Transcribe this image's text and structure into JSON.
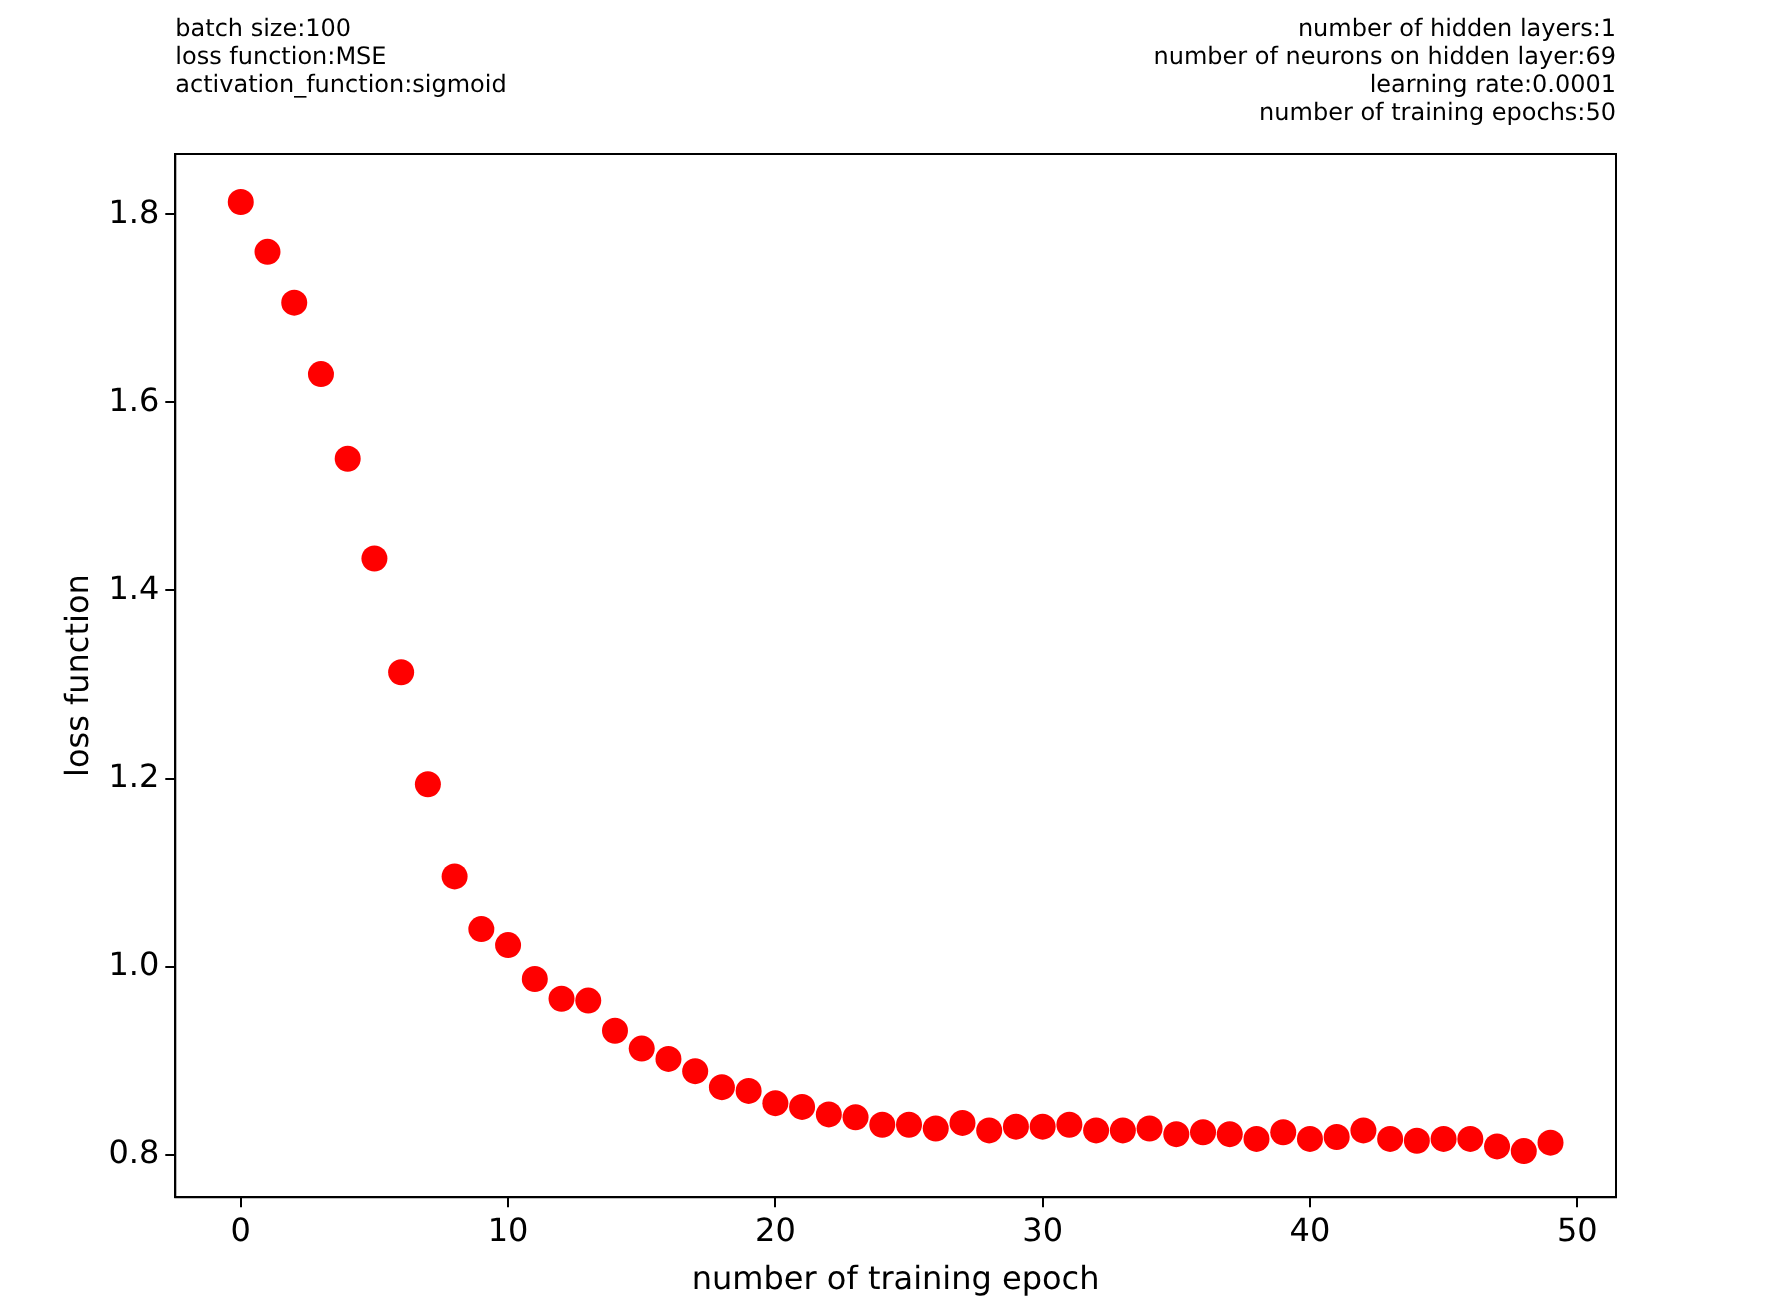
{
  "chart_data": {
    "type": "scatter",
    "xlabel": "number of training epoch",
    "ylabel": "loss function",
    "annotations": [
      "batch size:100\nloss function:MSE\nactivation_function:sigmoid",
      "number of hidden layers:1\nnumber of neurons on hidden layer:69\nlearning rate:0.0001\nnumber of training epochs:50"
    ],
    "x": [
      0,
      1,
      2,
      3,
      4,
      5,
      6,
      7,
      8,
      9,
      10,
      11,
      12,
      13,
      14,
      15,
      16,
      17,
      18,
      19,
      20,
      21,
      22,
      23,
      24,
      25,
      26,
      27,
      28,
      29,
      30,
      31,
      32,
      33,
      34,
      35,
      36,
      37,
      38,
      39,
      40,
      41,
      42,
      43,
      44,
      45,
      46,
      47,
      48,
      49
    ],
    "series": [
      {
        "color": "#ff0000",
        "values": [
          1.813,
          1.76,
          1.706,
          1.63,
          1.54,
          1.434,
          1.313,
          1.194,
          1.096,
          1.04,
          1.023,
          0.987,
          0.966,
          0.964,
          0.932,
          0.913,
          0.902,
          0.889,
          0.872,
          0.868,
          0.855,
          0.851,
          0.843,
          0.84,
          0.832,
          0.832,
          0.828,
          0.834,
          0.826,
          0.83,
          0.83,
          0.832,
          0.826,
          0.826,
          0.828,
          0.822,
          0.824,
          0.822,
          0.817,
          0.824,
          0.817,
          0.819,
          0.826,
          0.817,
          0.815,
          0.817,
          0.817,
          0.809,
          0.804,
          0.813
        ]
      }
    ],
    "xlim": [
      -2.45,
      51.45
    ],
    "ylim": [
      0.755,
      1.864
    ],
    "xticks": [
      0,
      10,
      20,
      30,
      40,
      50
    ],
    "yticks": [
      0.8,
      {
        "value": 1,
        "label": "1.0"
      },
      1.2,
      1.4,
      1.6,
      1.8
    ],
    "grid": false,
    "legend": false,
    "marker": "circle"
  }
}
